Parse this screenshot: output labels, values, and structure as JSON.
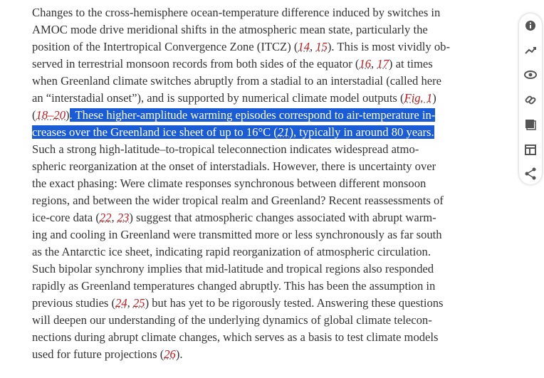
{
  "paragraph": {
    "lines": [
      [
        "Changes to the cross-hemisphere ocean-temperature difference induced by switches in"
      ],
      [
        "AMOC mode drive meridional shifts in the atmospheric mean state, particularly the"
      ],
      [
        "position of the Intertropical Convergence Zone (ITCZ) (",
        "14",
        ", ",
        "15",
        "). This is most vividly ob-"
      ],
      [
        "served in terrestrial monsoon records from both sides of the equator (",
        "16",
        ", ",
        "17",
        ") at times"
      ],
      [
        "when Greenland climate switches abruptly from a stadial to an interstadial (called here"
      ],
      [
        "an “interstadial onset”), and is supported by numerical climate model outputs (",
        "Fig. 1",
        ")"
      ],
      [
        "(",
        "18–20",
        ")",
        ". These higher-amplitude warming episodes correspond to air-temperature in-"
      ],
      [
        "creases over the Greenland ice sheet of up to 16°C (",
        "21",
        "), typically in around 80 years."
      ],
      [
        "Such a strong high-latitude–to-tropical teleconnection indicates widespread atmo-"
      ],
      [
        "spheric reorganization at the onset of interstadials. However, there is uncertainty over"
      ],
      [
        "the exact phasing: Were climate responses synchronous between different monsoon"
      ],
      [
        "regions, and between the wider tropical realm and Greenland? Recent reassessments of"
      ],
      [
        "ice-core data (",
        "22",
        ", ",
        "23",
        ") suggest that atmospheric changes associated with abrupt warm-"
      ],
      [
        "ing and cooling in Greenland were transmitted more or less synchronously as far south"
      ],
      [
        "as the Antarctic ice sheet, indicating rapid reorganization of atmospheric circulation."
      ],
      [
        "Such bipolar synchrony implies that mid-latitude and tropical regions also responded"
      ],
      [
        "rapidly as Greenland temperatures changed abruptly. This has been the assumption in"
      ],
      [
        "previous studies (",
        "24",
        ", ",
        "25",
        ") but has yet to be rigorously tested. Answering these questions"
      ],
      [
        "will deepen our understanding of the underlying dynamics of global climate telecon-"
      ],
      [
        "nections during abrupt climate changes, which serves as a basis to test climate models"
      ],
      [
        "used for future projections (",
        "26",
        ")."
      ]
    ]
  }
}
